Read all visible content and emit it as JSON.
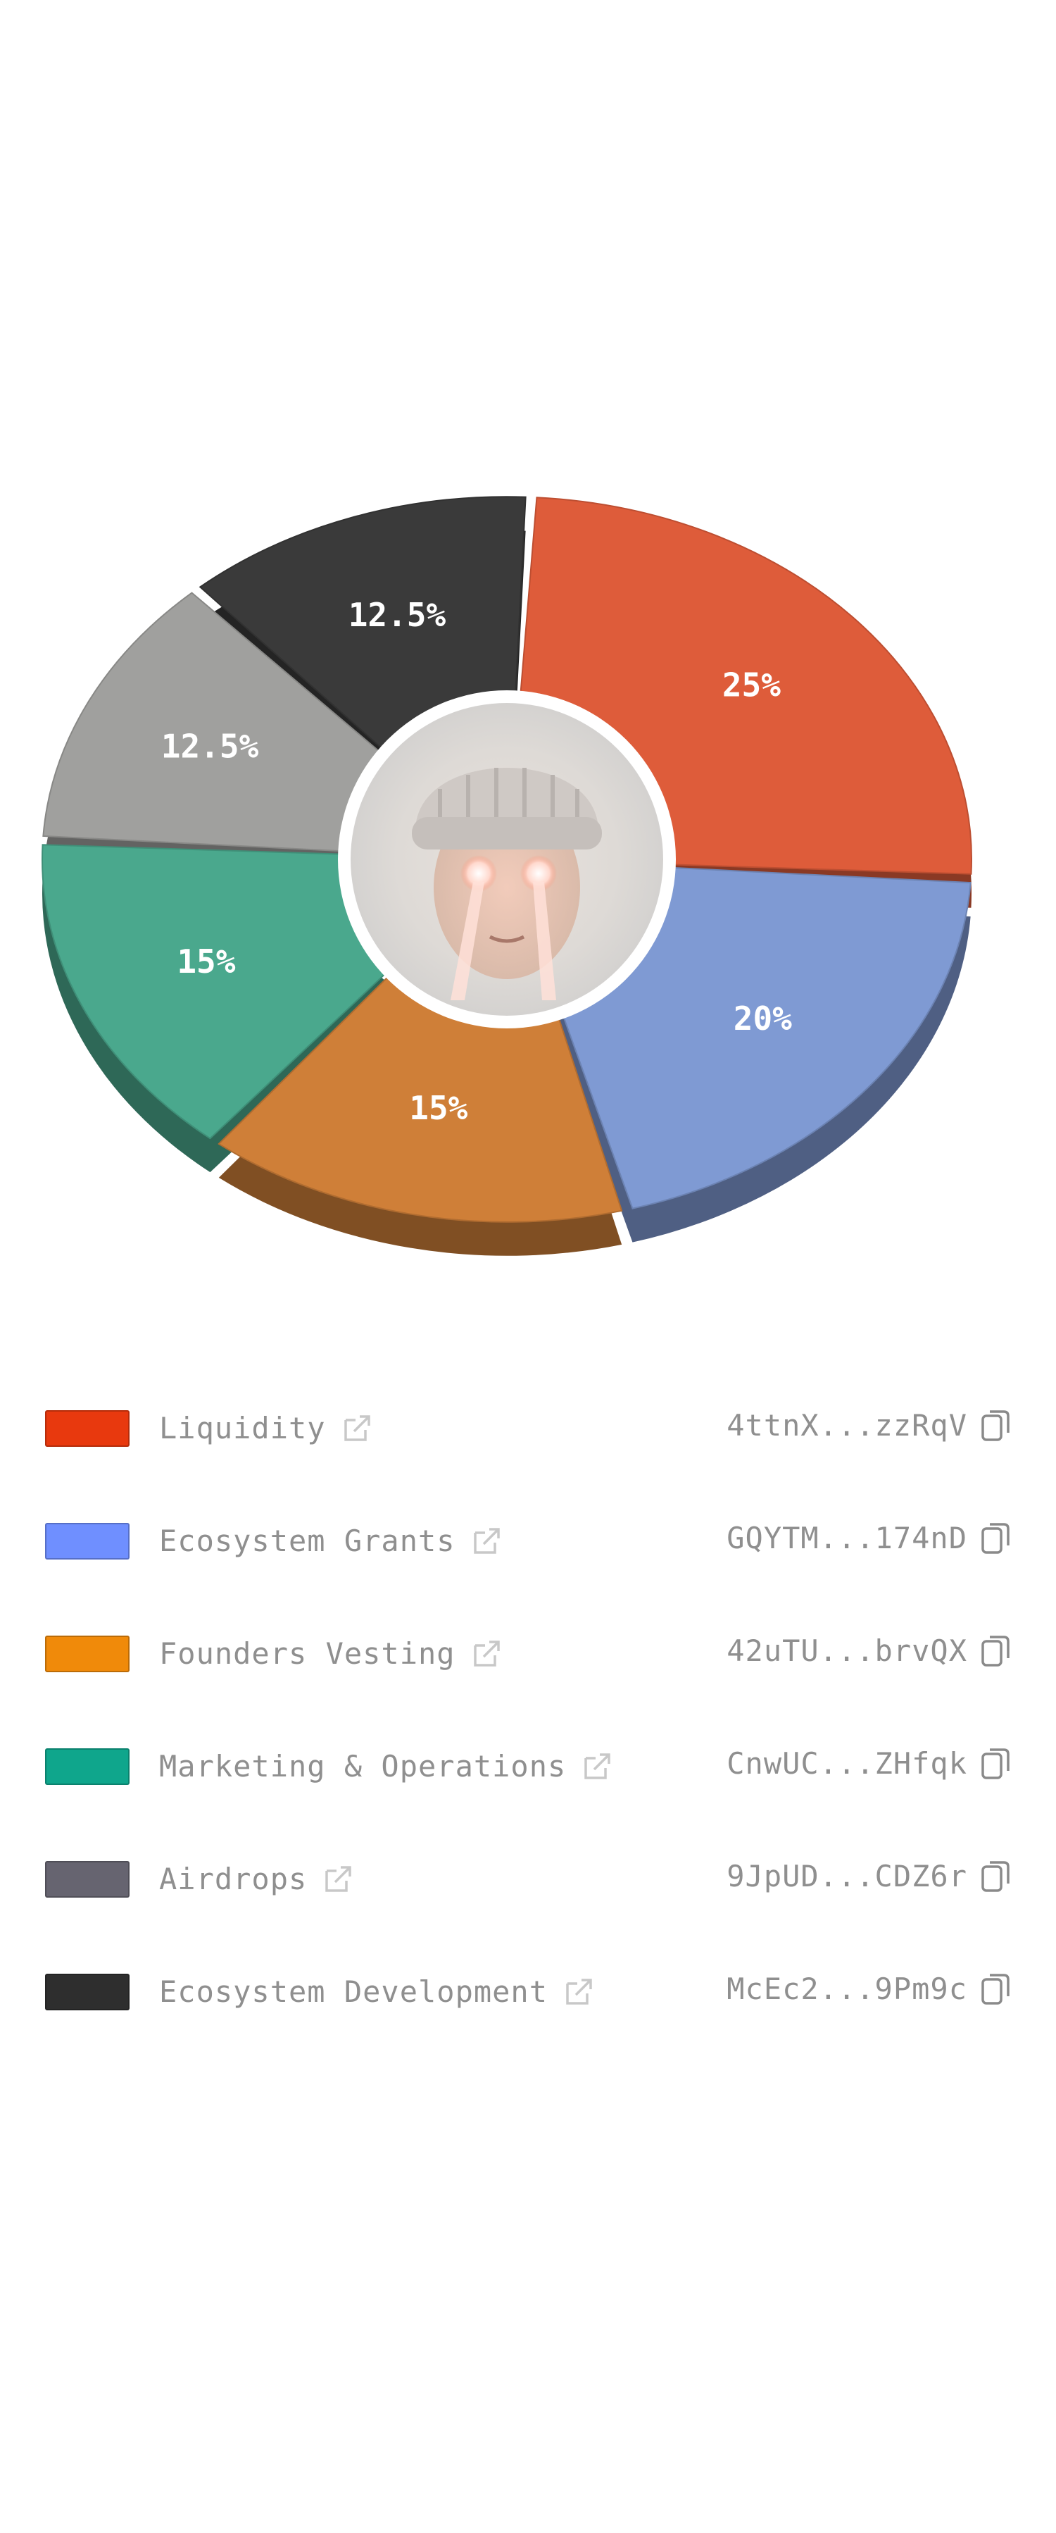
{
  "chart_data": {
    "type": "pie",
    "categories": [
      "Liquidity",
      "Ecosystem Grants",
      "Founders Vesting",
      "Marketing & Operations",
      "Airdrops",
      "Ecosystem Development"
    ],
    "values": [
      25,
      20,
      15,
      15,
      12.5,
      12.5
    ],
    "value_labels": [
      "25%",
      "20%",
      "15%",
      "15%",
      "12.5%",
      "12.5%"
    ],
    "colors": [
      "#e8390e",
      "#6f8fff",
      "#f08a0a",
      "#0fa68c",
      "#666470",
      "#2e2e2e"
    ],
    "slice_colors": [
      "#de5c3a",
      "#7f9ad3",
      "#cf7f38",
      "#4aa88d",
      "#a0a09e",
      "#3a3a3a"
    ],
    "donut": true,
    "center_image": "avatar with knit beanie and glowing eyes",
    "legend_placement": "bottom"
  },
  "legend": [
    {
      "label": "Liquidity",
      "address": "4ttnX...zzRqV",
      "link_icon": "external-link-icon",
      "copy_icon": "copy-icon"
    },
    {
      "label": "Ecosystem Grants",
      "address": "GQYTM...174nD",
      "link_icon": "external-link-icon",
      "copy_icon": "copy-icon"
    },
    {
      "label": "Founders Vesting",
      "address": "42uTU...brvQX",
      "link_icon": "external-link-icon",
      "copy_icon": "copy-icon"
    },
    {
      "label": "Marketing & Operations",
      "address": "CnwUC...ZHfqk",
      "link_icon": "external-link-icon",
      "copy_icon": "copy-icon"
    },
    {
      "label": "Airdrops",
      "address": "9JpUD...CDZ6r",
      "link_icon": "external-link-icon",
      "copy_icon": "copy-icon"
    },
    {
      "label": "Ecosystem Development",
      "address": "McEc2...9Pm9c",
      "link_icon": "external-link-icon",
      "copy_icon": "copy-icon"
    }
  ]
}
